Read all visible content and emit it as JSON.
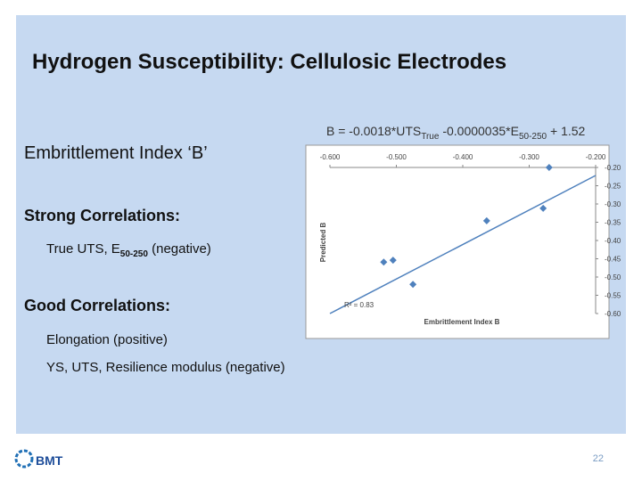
{
  "slide": {
    "title": "Hydrogen Susceptibility: Cellulosic Electrodes",
    "heading": "Embrittlement Index ‘B’",
    "equation": [
      "B = -0.0018*UTS",
      "True",
      " -0.0000035*E",
      "50-250",
      " + 1.52"
    ],
    "strong_heading": "Strong Correlations:",
    "strong_item": [
      "True UTS, E",
      "50-250",
      " (negative)"
    ],
    "good_heading": "Good Correlations:",
    "good_items": [
      "Elongation (positive)",
      "YS, UTS, Resilience modulus (negative)"
    ],
    "page_number": 22,
    "logo": "BMT"
  },
  "chart_data": {
    "type": "scatter",
    "x": [
      -0.27,
      -0.279,
      -0.364,
      -0.505,
      -0.519,
      -0.475
    ],
    "y": [
      -0.2,
      -0.312,
      -0.346,
      -0.454,
      -0.459,
      -0.52
    ],
    "color": "#4f81bd",
    "trendline": {
      "x": [
        -0.6,
        -0.2
      ],
      "y": [
        -0.6,
        -0.222
      ]
    },
    "xlabel": "Embrittlement Index B",
    "ylabel": "Predicted B",
    "annotation": "R² = 0.83",
    "xlim": [
      -0.6,
      -0.2
    ],
    "ylim": [
      -0.6,
      -0.2
    ],
    "xticks": [
      {
        "value": -0.6,
        "label": "-0.600"
      },
      {
        "value": -0.5,
        "label": "-0.500"
      },
      {
        "value": -0.4,
        "label": "-0.400"
      },
      {
        "value": -0.3,
        "label": "-0.300"
      },
      {
        "value": -0.2,
        "label": "-0.200"
      }
    ],
    "yticks": [
      {
        "value": -0.2,
        "label": "-0.20"
      },
      {
        "value": -0.25,
        "label": "-0.25"
      },
      {
        "value": -0.3,
        "label": "-0.30"
      },
      {
        "value": -0.35,
        "label": "-0.35"
      },
      {
        "value": -0.4,
        "label": "-0.40"
      },
      {
        "value": -0.45,
        "label": "-0.45"
      },
      {
        "value": -0.5,
        "label": "-0.50"
      },
      {
        "value": -0.55,
        "label": "-0.55"
      },
      {
        "value": -0.6,
        "label": "-0.60"
      }
    ]
  }
}
